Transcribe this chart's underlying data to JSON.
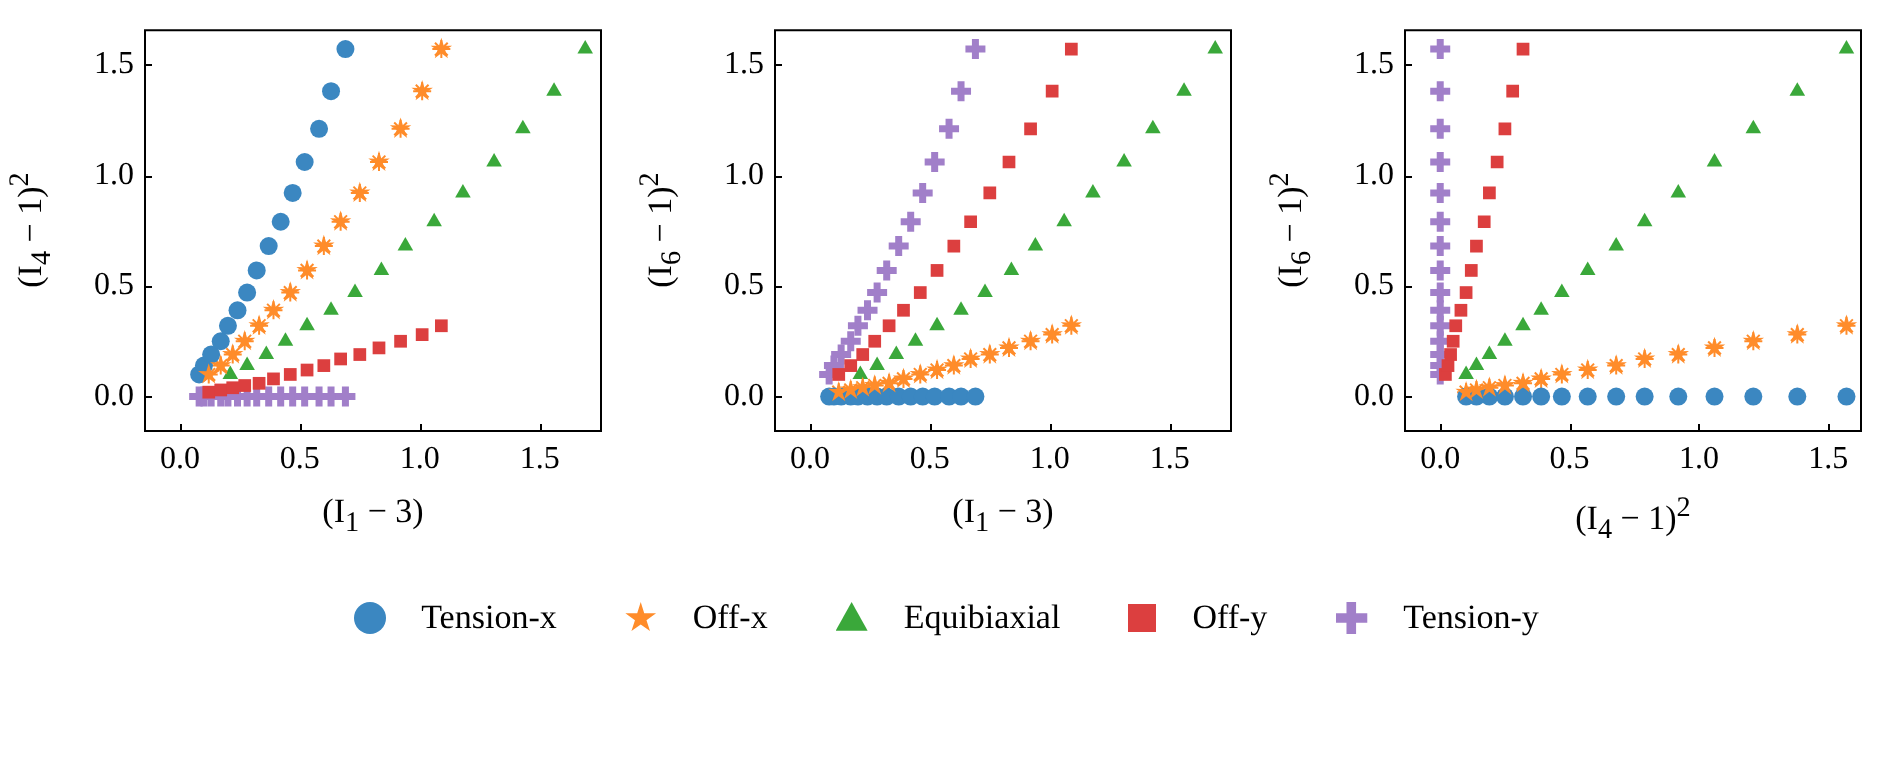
{
  "chart_data": [
    {
      "type": "scatter",
      "xlabel": "(I$_{1}$ − 3)",
      "ylabel": "(I$_{4}$ − 1)$^{2}$",
      "xlim": [
        -0.15,
        1.76
      ],
      "ylim": [
        -0.16,
        1.66
      ],
      "xticks": [
        {
          "value": 0,
          "label": "0.0"
        },
        {
          "value": 0.5,
          "label": "0.5"
        },
        {
          "value": 1,
          "label": "1.0"
        },
        {
          "value": 1.5,
          "label": "1.5"
        }
      ],
      "yticks": [
        {
          "value": 0,
          "label": "0.0"
        },
        {
          "value": 0.5,
          "label": "0.5"
        },
        {
          "value": 1,
          "label": "1.0"
        },
        {
          "value": 1.5,
          "label": "1.5"
        }
      ],
      "legend": "bottom",
      "series": [
        {
          "name": "Tension-x",
          "color": "#3b87c1",
          "marker": "circle",
          "x": [
            0.08,
            0.1,
            0.13,
            0.17,
            0.2,
            0.24,
            0.28,
            0.32,
            0.37,
            0.42,
            0.47,
            0.52,
            0.58,
            0.63,
            0.69
          ],
          "values": [
            0.1,
            0.14,
            0.19,
            0.25,
            0.32,
            0.39,
            0.47,
            0.57,
            0.68,
            0.79,
            0.92,
            1.06,
            1.21,
            1.38,
            1.57
          ]
        },
        {
          "name": "Off-x",
          "color": "#ff8c2a",
          "marker": "star",
          "x": [
            0.12,
            0.17,
            0.22,
            0.27,
            0.33,
            0.39,
            0.46,
            0.53,
            0.6,
            0.67,
            0.75,
            0.83,
            0.92,
            1.01,
            1.09
          ],
          "values": [
            0.1,
            0.14,
            0.19,
            0.25,
            0.32,
            0.39,
            0.47,
            0.57,
            0.68,
            0.79,
            0.92,
            1.06,
            1.21,
            1.38,
            1.57
          ]
        },
        {
          "name": "Equibiaxial",
          "color": "#3aa83a",
          "marker": "triangle",
          "x": [
            0.21,
            0.28,
            0.36,
            0.44,
            0.53,
            0.63,
            0.73,
            0.84,
            0.94,
            1.06,
            1.18,
            1.31,
            1.43,
            1.56,
            1.69
          ],
          "values": [
            0.1,
            0.14,
            0.19,
            0.25,
            0.32,
            0.39,
            0.47,
            0.57,
            0.68,
            0.79,
            0.92,
            1.06,
            1.21,
            1.38,
            1.57
          ]
        },
        {
          "name": "Off-y",
          "color": "#dc3f3f",
          "marker": "square",
          "x": [
            0.12,
            0.17,
            0.22,
            0.27,
            0.33,
            0.39,
            0.46,
            0.53,
            0.6,
            0.67,
            0.75,
            0.83,
            0.92,
            1.01,
            1.09
          ],
          "values": [
            0.02,
            0.03,
            0.04,
            0.05,
            0.06,
            0.08,
            0.1,
            0.12,
            0.14,
            0.17,
            0.19,
            0.22,
            0.25,
            0.28,
            0.32
          ]
        },
        {
          "name": "Tension-y",
          "color": "#a17fc9",
          "marker": "cross",
          "x": [
            0.08,
            0.1,
            0.13,
            0.17,
            0.2,
            0.24,
            0.28,
            0.32,
            0.37,
            0.42,
            0.47,
            0.52,
            0.58,
            0.63,
            0.69
          ],
          "values": [
            0,
            0,
            0,
            0,
            0,
            0,
            0,
            0,
            0,
            0,
            0,
            0,
            0,
            0,
            0
          ]
        }
      ]
    },
    {
      "type": "scatter",
      "xlabel": "(I$_{1}$ − 3)",
      "ylabel": "(I$_{6}$ − 1)$^{2}$",
      "xlim": [
        -0.15,
        1.76
      ],
      "ylim": [
        -0.16,
        1.66
      ],
      "xticks": [
        {
          "value": 0,
          "label": "0.0"
        },
        {
          "value": 0.5,
          "label": "0.5"
        },
        {
          "value": 1,
          "label": "1.0"
        },
        {
          "value": 1.5,
          "label": "1.5"
        }
      ],
      "yticks": [
        {
          "value": 0,
          "label": "0.0"
        },
        {
          "value": 0.5,
          "label": "0.5"
        },
        {
          "value": 1,
          "label": "1.0"
        },
        {
          "value": 1.5,
          "label": "1.5"
        }
      ],
      "series": [
        {
          "color": "#3b87c1",
          "marker": "circle",
          "x": [
            0.08,
            0.1,
            0.13,
            0.17,
            0.2,
            0.24,
            0.28,
            0.32,
            0.37,
            0.42,
            0.47,
            0.52,
            0.58,
            0.63,
            0.69
          ],
          "values": [
            0,
            0,
            0,
            0,
            0,
            0,
            0,
            0,
            0,
            0,
            0,
            0,
            0,
            0,
            0
          ]
        },
        {
          "color": "#ff8c2a",
          "marker": "star",
          "x": [
            0.12,
            0.17,
            0.22,
            0.27,
            0.33,
            0.39,
            0.46,
            0.53,
            0.6,
            0.67,
            0.75,
            0.83,
            0.92,
            1.01,
            1.09
          ],
          "values": [
            0.02,
            0.03,
            0.04,
            0.05,
            0.06,
            0.08,
            0.1,
            0.12,
            0.14,
            0.17,
            0.19,
            0.22,
            0.25,
            0.28,
            0.32
          ]
        },
        {
          "color": "#3aa83a",
          "marker": "triangle",
          "x": [
            0.21,
            0.28,
            0.36,
            0.44,
            0.53,
            0.63,
            0.73,
            0.84,
            0.94,
            1.06,
            1.18,
            1.31,
            1.43,
            1.56,
            1.69
          ],
          "values": [
            0.1,
            0.14,
            0.19,
            0.25,
            0.32,
            0.39,
            0.47,
            0.57,
            0.68,
            0.79,
            0.92,
            1.06,
            1.21,
            1.38,
            1.57
          ]
        },
        {
          "color": "#dc3f3f",
          "marker": "square",
          "x": [
            0.12,
            0.17,
            0.22,
            0.27,
            0.33,
            0.39,
            0.46,
            0.53,
            0.6,
            0.67,
            0.75,
            0.83,
            0.92,
            1.01,
            1.09
          ],
          "values": [
            0.1,
            0.14,
            0.19,
            0.25,
            0.32,
            0.39,
            0.47,
            0.57,
            0.68,
            0.79,
            0.92,
            1.06,
            1.21,
            1.38,
            1.57
          ]
        },
        {
          "color": "#a17fc9",
          "marker": "cross",
          "x": [
            0.08,
            0.1,
            0.13,
            0.17,
            0.2,
            0.24,
            0.28,
            0.32,
            0.37,
            0.42,
            0.47,
            0.52,
            0.58,
            0.63,
            0.69
          ],
          "values": [
            0.1,
            0.14,
            0.19,
            0.25,
            0.32,
            0.39,
            0.47,
            0.57,
            0.68,
            0.79,
            0.92,
            1.06,
            1.21,
            1.38,
            1.57
          ]
        }
      ]
    },
    {
      "type": "scatter",
      "xlabel": "(I$_{4}$ − 1)$^{2}$",
      "ylabel": "(I$_{6}$ − 1)$^{2}$",
      "xlim": [
        -0.14,
        1.63
      ],
      "ylim": [
        -0.16,
        1.66
      ],
      "xticks": [
        {
          "value": 0,
          "label": "0.0"
        },
        {
          "value": 0.5,
          "label": "0.5"
        },
        {
          "value": 1,
          "label": "1.0"
        },
        {
          "value": 1.5,
          "label": "1.5"
        }
      ],
      "yticks": [
        {
          "value": 0,
          "label": "0.0"
        },
        {
          "value": 0.5,
          "label": "0.5"
        },
        {
          "value": 1,
          "label": "1.0"
        },
        {
          "value": 1.5,
          "label": "1.5"
        }
      ],
      "series": [
        {
          "color": "#3b87c1",
          "marker": "circle",
          "x": [
            0.1,
            0.14,
            0.19,
            0.25,
            0.32,
            0.39,
            0.47,
            0.57,
            0.68,
            0.79,
            0.92,
            1.06,
            1.21,
            1.38,
            1.57
          ],
          "values": [
            0,
            0,
            0,
            0,
            0,
            0,
            0,
            0,
            0,
            0,
            0,
            0,
            0,
            0,
            0
          ]
        },
        {
          "color": "#ff8c2a",
          "marker": "star",
          "x": [
            0.1,
            0.14,
            0.19,
            0.25,
            0.32,
            0.39,
            0.47,
            0.57,
            0.68,
            0.79,
            0.92,
            1.06,
            1.21,
            1.38,
            1.57
          ],
          "values": [
            0.02,
            0.03,
            0.04,
            0.05,
            0.06,
            0.08,
            0.1,
            0.12,
            0.14,
            0.17,
            0.19,
            0.22,
            0.25,
            0.28,
            0.32
          ]
        },
        {
          "color": "#3aa83a",
          "marker": "triangle",
          "x": [
            0.1,
            0.14,
            0.19,
            0.25,
            0.32,
            0.39,
            0.47,
            0.57,
            0.68,
            0.79,
            0.92,
            1.06,
            1.21,
            1.38,
            1.57
          ],
          "values": [
            0.1,
            0.14,
            0.19,
            0.25,
            0.32,
            0.39,
            0.47,
            0.57,
            0.68,
            0.79,
            0.92,
            1.06,
            1.21,
            1.38,
            1.57
          ]
        },
        {
          "color": "#dc3f3f",
          "marker": "square",
          "x": [
            0.02,
            0.03,
            0.04,
            0.05,
            0.06,
            0.08,
            0.1,
            0.12,
            0.14,
            0.17,
            0.19,
            0.22,
            0.25,
            0.28,
            0.32
          ],
          "values": [
            0.1,
            0.14,
            0.19,
            0.25,
            0.32,
            0.39,
            0.47,
            0.57,
            0.68,
            0.79,
            0.92,
            1.06,
            1.21,
            1.38,
            1.57
          ]
        },
        {
          "color": "#a17fc9",
          "marker": "cross",
          "x": [
            0,
            0,
            0,
            0,
            0,
            0,
            0,
            0,
            0,
            0,
            0,
            0,
            0,
            0,
            0
          ],
          "values": [
            0.1,
            0.14,
            0.19,
            0.25,
            0.32,
            0.39,
            0.47,
            0.57,
            0.68,
            0.79,
            0.92,
            1.06,
            1.21,
            1.38,
            1.57
          ]
        }
      ]
    }
  ]
}
